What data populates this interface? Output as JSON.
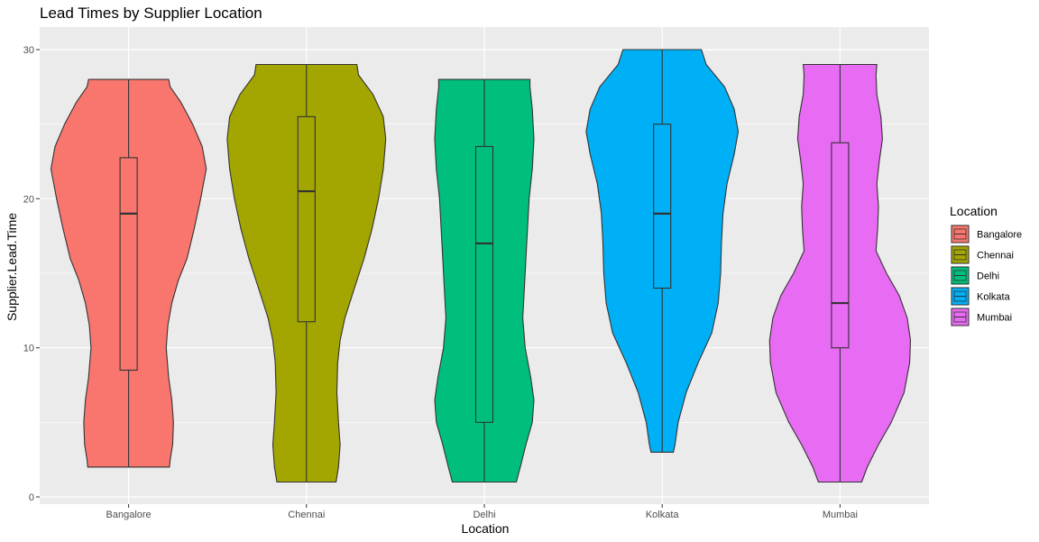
{
  "chart_data": {
    "type": "violin",
    "title": "Lead Times by Supplier Location",
    "xlabel": "Location",
    "ylabel": "Supplier.Lead.Time",
    "ylim": [
      0,
      30
    ],
    "yticks": [
      "0",
      "10",
      "20",
      "30"
    ],
    "categories": [
      "Bangalore",
      "Chennai",
      "Delhi",
      "Kolkata",
      "Mumbai"
    ],
    "colors": [
      "#F8766D",
      "#A3A500",
      "#00BF7D",
      "#00B0F6",
      "#E76BF3"
    ],
    "grid": true,
    "legend": {
      "title": "Location",
      "position": "right",
      "entries": [
        "Bangalore",
        "Chennai",
        "Delhi",
        "Kolkata",
        "Mumbai"
      ]
    },
    "series": [
      {
        "name": "Bangalore",
        "min": 2,
        "max": 28,
        "q1": 8.5,
        "median": 19,
        "q3": 22.75,
        "density": [
          [
            2,
            0.51
          ],
          [
            2.5,
            0.52
          ],
          [
            3.5,
            0.55
          ],
          [
            5,
            0.56
          ],
          [
            6.5,
            0.54
          ],
          [
            8,
            0.5
          ],
          [
            10,
            0.47
          ],
          [
            11.5,
            0.49
          ],
          [
            13,
            0.54
          ],
          [
            14.5,
            0.62
          ],
          [
            16,
            0.73
          ],
          [
            18,
            0.82
          ],
          [
            20,
            0.9
          ],
          [
            22,
            0.97
          ],
          [
            23.5,
            0.92
          ],
          [
            25,
            0.8
          ],
          [
            26.5,
            0.65
          ],
          [
            27.5,
            0.52
          ],
          [
            28,
            0.5
          ]
        ]
      },
      {
        "name": "Chennai",
        "min": 1,
        "max": 29,
        "q1": 11.75,
        "median": 20.5,
        "q3": 25.5,
        "density": [
          [
            1,
            0.37
          ],
          [
            2,
            0.4
          ],
          [
            3.5,
            0.42
          ],
          [
            5,
            0.4
          ],
          [
            7,
            0.38
          ],
          [
            9,
            0.39
          ],
          [
            10.5,
            0.42
          ],
          [
            12,
            0.48
          ],
          [
            14,
            0.6
          ],
          [
            16,
            0.72
          ],
          [
            18,
            0.82
          ],
          [
            20,
            0.9
          ],
          [
            22,
            0.96
          ],
          [
            24,
            0.99
          ],
          [
            25.5,
            0.96
          ],
          [
            27,
            0.83
          ],
          [
            28.3,
            0.65
          ],
          [
            29,
            0.63
          ]
        ]
      },
      {
        "name": "Delhi",
        "min": 1,
        "max": 28,
        "q1": 5,
        "median": 17,
        "q3": 23.5,
        "density": [
          [
            1,
            0.4
          ],
          [
            2,
            0.45
          ],
          [
            3.5,
            0.52
          ],
          [
            5,
            0.6
          ],
          [
            6.5,
            0.62
          ],
          [
            8,
            0.58
          ],
          [
            10,
            0.51
          ],
          [
            12,
            0.48
          ],
          [
            14,
            0.5
          ],
          [
            16,
            0.52
          ],
          [
            18,
            0.54
          ],
          [
            20,
            0.56
          ],
          [
            22,
            0.6
          ],
          [
            24,
            0.62
          ],
          [
            26,
            0.6
          ],
          [
            27.5,
            0.57
          ],
          [
            28,
            0.57
          ]
        ]
      },
      {
        "name": "Kolkata",
        "min": 3,
        "max": 30,
        "q1": 14,
        "median": 19,
        "q3": 25,
        "density": [
          [
            3,
            0.14
          ],
          [
            3.5,
            0.16
          ],
          [
            5,
            0.2
          ],
          [
            7,
            0.3
          ],
          [
            9,
            0.45
          ],
          [
            11,
            0.62
          ],
          [
            13,
            0.7
          ],
          [
            15,
            0.73
          ],
          [
            17,
            0.74
          ],
          [
            19,
            0.76
          ],
          [
            21,
            0.81
          ],
          [
            23,
            0.9
          ],
          [
            24.5,
            0.95
          ],
          [
            26,
            0.9
          ],
          [
            27.5,
            0.78
          ],
          [
            29,
            0.55
          ],
          [
            30,
            0.49
          ]
        ]
      },
      {
        "name": "Mumbai",
        "min": 1,
        "max": 29,
        "q1": 10,
        "median": 13,
        "q3": 23.75,
        "density": [
          [
            1,
            0.27
          ],
          [
            2,
            0.34
          ],
          [
            3.5,
            0.48
          ],
          [
            5,
            0.64
          ],
          [
            7,
            0.8
          ],
          [
            9,
            0.87
          ],
          [
            10.5,
            0.88
          ],
          [
            12,
            0.84
          ],
          [
            13.5,
            0.74
          ],
          [
            15,
            0.58
          ],
          [
            16.5,
            0.45
          ],
          [
            18,
            0.47
          ],
          [
            19.5,
            0.48
          ],
          [
            21,
            0.46
          ],
          [
            22.5,
            0.49
          ],
          [
            24,
            0.53
          ],
          [
            25.5,
            0.51
          ],
          [
            27,
            0.46
          ],
          [
            28.3,
            0.45
          ],
          [
            29,
            0.46
          ]
        ]
      }
    ]
  }
}
